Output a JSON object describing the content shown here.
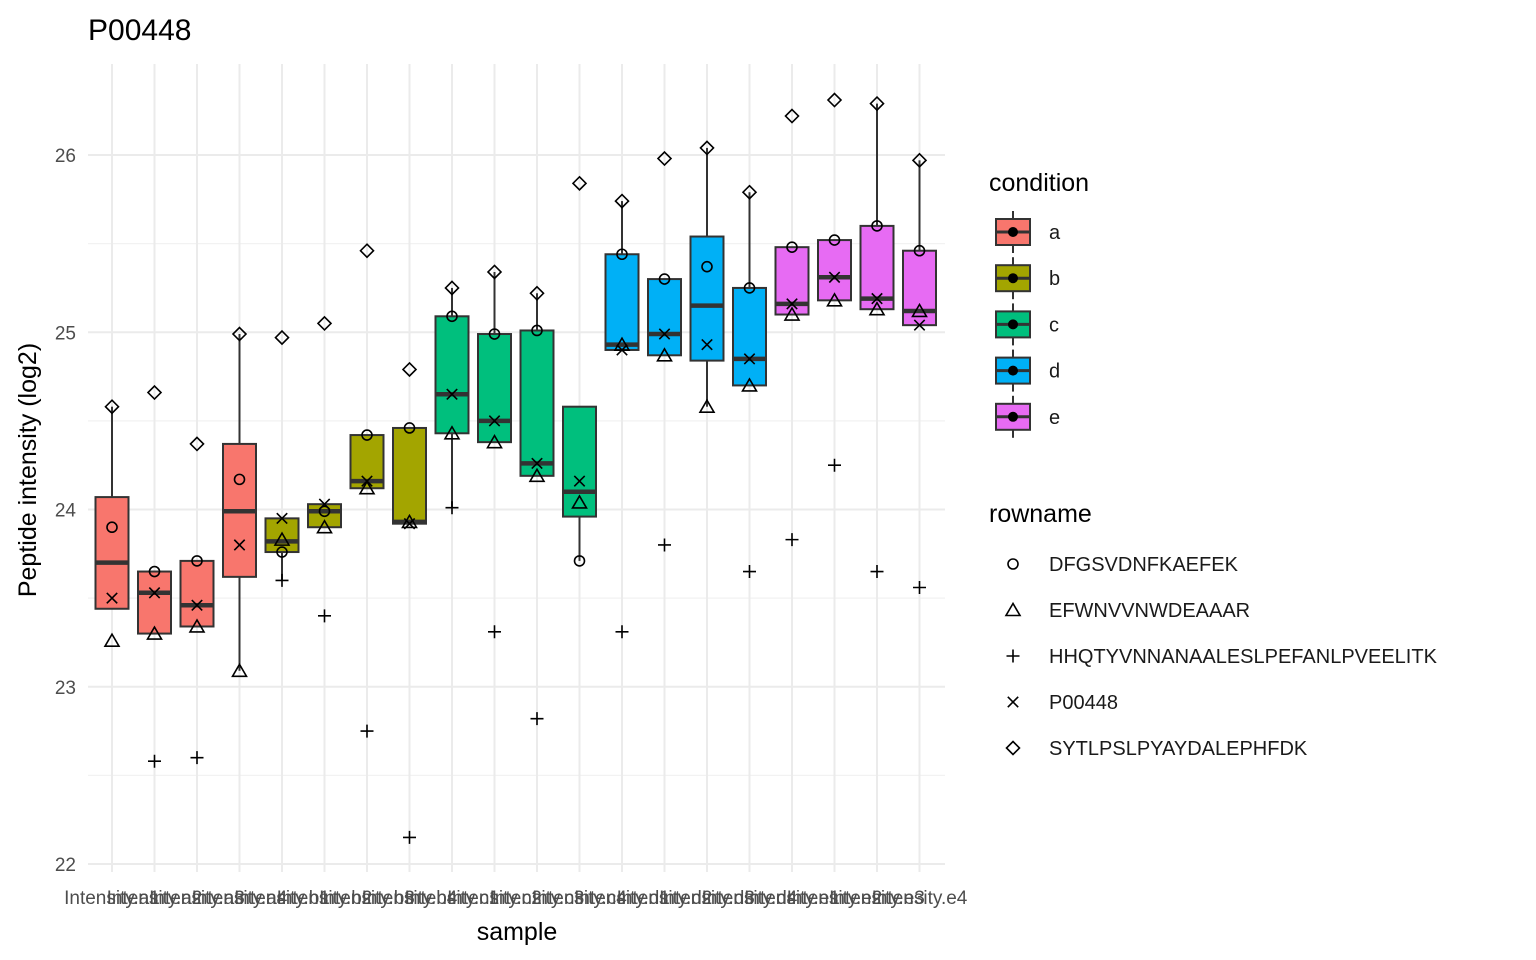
{
  "chart_data": {
    "type": "box",
    "title": "P00448",
    "xlabel": "sample",
    "ylabel": "Peptide intensity (log2)",
    "ylim": [
      21.95,
      26.5
    ],
    "yticks": [
      22,
      23,
      24,
      25,
      26
    ],
    "ytick_labels": [
      "22",
      "23",
      "24",
      "25",
      "26"
    ],
    "grid": true,
    "legend_position": "right",
    "categories": [
      "Intensity.a1",
      "Intensity.a2",
      "Intensity.a3",
      "Intensity.a4",
      "Intensity.b1",
      "Intensity.b2",
      "Intensity.b3",
      "Intensity.b4",
      "Intensity.c1",
      "Intensity.c2",
      "Intensity.c3",
      "Intensity.c4",
      "Intensity.d1",
      "Intensity.d2",
      "Intensity.d3",
      "Intensity.d4",
      "Intensity.e1",
      "Intensity.e2",
      "Intensity.e3",
      "Intensity.e4"
    ],
    "sample_condition": [
      "a",
      "a",
      "a",
      "a",
      "b",
      "b",
      "b",
      "b",
      "c",
      "c",
      "c",
      "c",
      "d",
      "d",
      "d",
      "d",
      "e",
      "e",
      "e",
      "e"
    ],
    "boxes": [
      {
        "q1": 23.44,
        "median": 23.7,
        "q3": 24.07,
        "whisker_low": 23.44,
        "whisker_high": 24.58
      },
      {
        "q1": 23.3,
        "median": 23.53,
        "q3": 23.65,
        "whisker_low": 23.3,
        "whisker_high": 23.65
      },
      {
        "q1": 23.34,
        "median": 23.46,
        "q3": 23.71,
        "whisker_low": 23.34,
        "whisker_high": 23.71
      },
      {
        "q1": 23.62,
        "median": 23.99,
        "q3": 24.37,
        "whisker_low": 23.09,
        "whisker_high": 24.99
      },
      {
        "q1": 23.76,
        "median": 23.82,
        "q3": 23.95,
        "whisker_low": 23.6,
        "whisker_high": 23.95
      },
      {
        "q1": 23.9,
        "median": 23.99,
        "q3": 24.03,
        "whisker_low": 23.9,
        "whisker_high": 24.03
      },
      {
        "q1": 24.12,
        "median": 24.16,
        "q3": 24.42,
        "whisker_low": 24.12,
        "whisker_high": 24.42
      },
      {
        "q1": 23.92,
        "median": 23.93,
        "q3": 24.46,
        "whisker_low": 23.92,
        "whisker_high": 24.46
      },
      {
        "q1": 24.43,
        "median": 24.65,
        "q3": 25.09,
        "whisker_low": 24.01,
        "whisker_high": 25.25
      },
      {
        "q1": 24.38,
        "median": 24.5,
        "q3": 24.99,
        "whisker_low": 24.38,
        "whisker_high": 25.34
      },
      {
        "q1": 24.19,
        "median": 24.26,
        "q3": 25.01,
        "whisker_low": 24.19,
        "whisker_high": 25.22
      },
      {
        "q1": 23.96,
        "median": 24.1,
        "q3": 24.58,
        "whisker_low": 23.71,
        "whisker_high": 24.58
      },
      {
        "q1": 24.9,
        "median": 24.93,
        "q3": 25.44,
        "whisker_low": 24.9,
        "whisker_high": 25.74
      },
      {
        "q1": 24.87,
        "median": 24.99,
        "q3": 25.3,
        "whisker_low": 24.87,
        "whisker_high": 25.3
      },
      {
        "q1": 24.84,
        "median": 25.15,
        "q3": 25.54,
        "whisker_low": 24.58,
        "whisker_high": 26.04
      },
      {
        "q1": 24.7,
        "median": 24.85,
        "q3": 25.25,
        "whisker_low": 24.7,
        "whisker_high": 25.79
      },
      {
        "q1": 25.1,
        "median": 25.16,
        "q3": 25.48,
        "whisker_low": 25.1,
        "whisker_high": 25.48
      },
      {
        "q1": 25.18,
        "median": 25.31,
        "q3": 25.52,
        "whisker_low": 25.18,
        "whisker_high": 25.52
      },
      {
        "q1": 25.13,
        "median": 25.19,
        "q3": 25.6,
        "whisker_low": 25.13,
        "whisker_high": 26.29
      },
      {
        "q1": 25.04,
        "median": 25.12,
        "q3": 25.46,
        "whisker_low": 25.04,
        "whisker_high": 25.97
      }
    ],
    "series": [
      {
        "name": "DFGSVDNFKAEFEK",
        "shape": "circle",
        "values": [
          23.9,
          23.65,
          23.71,
          24.17,
          23.76,
          23.99,
          24.42,
          24.46,
          25.09,
          24.99,
          25.01,
          23.71,
          25.44,
          25.3,
          25.37,
          25.25,
          25.48,
          25.52,
          25.6,
          25.46
        ]
      },
      {
        "name": "EFWNVVNWDEAAAR",
        "shape": "triangle",
        "values": [
          23.26,
          23.3,
          23.34,
          23.09,
          23.83,
          23.9,
          24.12,
          23.93,
          24.43,
          24.38,
          24.19,
          24.04,
          24.93,
          24.87,
          24.58,
          24.7,
          25.1,
          25.18,
          25.13,
          25.12
        ]
      },
      {
        "name": "HHQTYVNNANAALESLPEFANLPVEELITK",
        "shape": "plus",
        "values": [
          null,
          22.58,
          22.6,
          null,
          23.6,
          23.4,
          22.75,
          22.15,
          24.01,
          23.31,
          22.82,
          null,
          23.31,
          23.8,
          null,
          23.65,
          23.83,
          24.25,
          23.65,
          23.56
        ]
      },
      {
        "name": "P00448",
        "shape": "cross",
        "values": [
          23.5,
          23.53,
          23.46,
          23.8,
          23.95,
          24.03,
          24.16,
          23.92,
          24.65,
          24.5,
          24.26,
          24.16,
          24.9,
          24.99,
          24.93,
          24.85,
          25.16,
          25.31,
          25.19,
          25.04
        ]
      },
      {
        "name": "SYTLPSLPYAYDALEPHFDK",
        "shape": "diamond",
        "values": [
          24.58,
          24.66,
          24.37,
          24.99,
          24.97,
          25.05,
          25.46,
          24.79,
          25.25,
          25.34,
          25.22,
          25.84,
          25.74,
          25.98,
          26.04,
          25.79,
          26.22,
          26.31,
          26.29,
          25.97
        ]
      }
    ],
    "legend_condition": {
      "title": "condition",
      "items": [
        {
          "label": "a",
          "color": "#F8766D"
        },
        {
          "label": "b",
          "color": "#A3A500"
        },
        {
          "label": "c",
          "color": "#00BF7D"
        },
        {
          "label": "d",
          "color": "#00B0F6"
        },
        {
          "label": "e",
          "color": "#E76BF3"
        }
      ]
    },
    "legend_rowname": {
      "title": "rowname",
      "items": [
        {
          "label": "DFGSVDNFKAEFEK",
          "shape": "circle"
        },
        {
          "label": "EFWNVVNWDEAAAR",
          "shape": "triangle"
        },
        {
          "label": "HHQTYVNNANAALESLPEFANLPVEELITK",
          "shape": "plus"
        },
        {
          "label": "P00448",
          "shape": "cross"
        },
        {
          "label": "SYTLPSLPYAYDALEPHFDK",
          "shape": "diamond"
        }
      ]
    }
  }
}
